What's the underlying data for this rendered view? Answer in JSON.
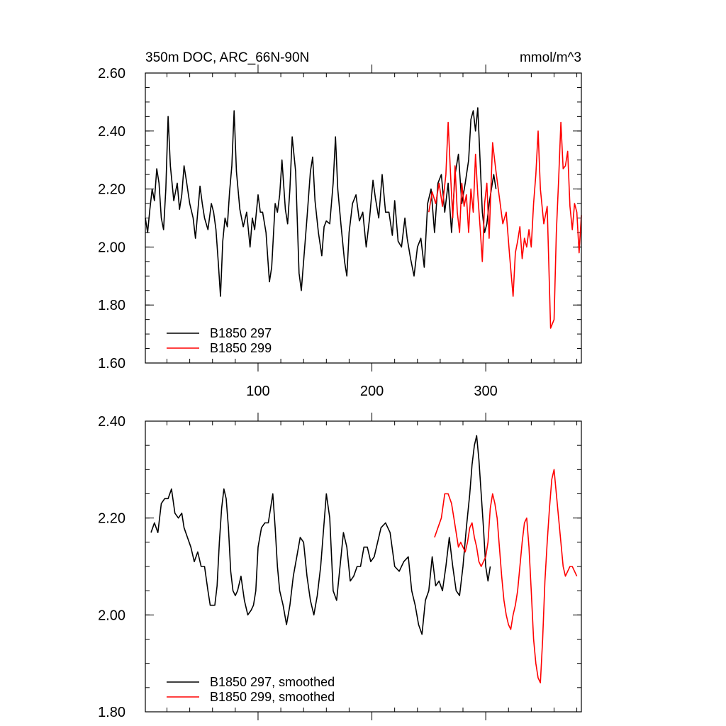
{
  "chart_data": [
    {
      "type": "line",
      "title_left": "350m DOC, ARC_66N-90N",
      "title_right": "mmol/m^3",
      "xlim": [
        1,
        384
      ],
      "ylim": [
        1.6,
        2.6
      ],
      "yticks": [
        "1.60",
        "1.80",
        "2.00",
        "2.20",
        "2.40",
        "2.60"
      ],
      "xticks": [
        "100",
        "200",
        "300"
      ],
      "legend": [
        "B1850 297",
        "B1850 299"
      ],
      "legend_position": "bottom-left",
      "series": [
        {
          "name": "B1850 297",
          "color": "#000000",
          "x": [
            1,
            3,
            5,
            7,
            9,
            11,
            13,
            15,
            17,
            19,
            21,
            23,
            26,
            29,
            31,
            33,
            35,
            37,
            40,
            43,
            45,
            47,
            49,
            51,
            53,
            56,
            59,
            61,
            63,
            65,
            67,
            69,
            71,
            73,
            75,
            77,
            79,
            81,
            84,
            87,
            90,
            93,
            95,
            97,
            100,
            102,
            104,
            107,
            110,
            112,
            115,
            117,
            119,
            121,
            124,
            126,
            128,
            130,
            133,
            136,
            138,
            140,
            143,
            146,
            148,
            150,
            153,
            156,
            158,
            160,
            163,
            166,
            168,
            170,
            173,
            176,
            178,
            180,
            183,
            186,
            189,
            192,
            195,
            198,
            201,
            203,
            206,
            209,
            212,
            215,
            218,
            220,
            223,
            226,
            229,
            231,
            234,
            237,
            240,
            243,
            246,
            249,
            252,
            255,
            258,
            261,
            264,
            267,
            270,
            273,
            276,
            279,
            282,
            285,
            287,
            289,
            291,
            293,
            295,
            297,
            299,
            301,
            303,
            305,
            307,
            309
          ],
          "y": [
            2.1,
            2.05,
            2.13,
            2.2,
            2.16,
            2.27,
            2.22,
            2.1,
            2.06,
            2.2,
            2.45,
            2.28,
            2.16,
            2.22,
            2.13,
            2.18,
            2.28,
            2.23,
            2.15,
            2.1,
            2.03,
            2.12,
            2.21,
            2.15,
            2.1,
            2.06,
            2.15,
            2.12,
            2.06,
            1.95,
            1.83,
            2.02,
            2.1,
            2.07,
            2.19,
            2.28,
            2.47,
            2.26,
            2.13,
            2.07,
            2.12,
            2.0,
            2.1,
            2.06,
            2.18,
            2.12,
            2.12,
            2.05,
            1.88,
            1.93,
            2.15,
            2.12,
            2.18,
            2.3,
            2.13,
            2.08,
            2.2,
            2.38,
            2.26,
            1.91,
            1.85,
            1.95,
            2.1,
            2.26,
            2.31,
            2.16,
            2.05,
            1.97,
            2.07,
            2.09,
            2.08,
            2.22,
            2.38,
            2.2,
            2.07,
            1.95,
            1.9,
            2.05,
            2.15,
            2.18,
            2.09,
            2.12,
            2.0,
            2.1,
            2.23,
            2.17,
            2.1,
            2.25,
            2.12,
            2.12,
            2.04,
            2.16,
            2.02,
            2.0,
            2.1,
            2.03,
            1.96,
            1.9,
            2.0,
            2.03,
            1.93,
            2.15,
            2.2,
            2.05,
            2.22,
            2.25,
            2.12,
            2.22,
            2.05,
            2.25,
            2.32,
            2.15,
            2.22,
            2.3,
            2.44,
            2.47,
            2.4,
            2.48,
            2.3,
            2.12,
            2.05,
            2.08,
            2.15,
            2.2,
            2.25,
            2.2
          ]
        },
        {
          "name": "B1850 299",
          "color": "#ff0000",
          "x": [
            250,
            253,
            256,
            259,
            262,
            265,
            267,
            269,
            271,
            273,
            275,
            277,
            279,
            281,
            283,
            285,
            287,
            289,
            291,
            293,
            295,
            297,
            299,
            301,
            303,
            306,
            309,
            312,
            315,
            318,
            321,
            324,
            326,
            328,
            330,
            332,
            334,
            336,
            338,
            340,
            342,
            344,
            346,
            348,
            351,
            354,
            357,
            360,
            362,
            364,
            366,
            368,
            370,
            372,
            374,
            376,
            378,
            380,
            382,
            384
          ],
          "y": [
            2.12,
            2.19,
            2.15,
            2.22,
            2.14,
            2.25,
            2.43,
            2.26,
            2.1,
            2.28,
            2.12,
            2.05,
            2.22,
            2.14,
            2.18,
            2.05,
            2.2,
            2.12,
            2.32,
            2.18,
            2.07,
            1.95,
            2.15,
            2.22,
            2.03,
            2.36,
            2.26,
            2.17,
            2.08,
            2.12,
            1.97,
            1.83,
            1.98,
            2.02,
            2.07,
            1.96,
            2.03,
            2.0,
            2.06,
            2.0,
            2.15,
            2.25,
            2.4,
            2.2,
            2.08,
            2.14,
            1.72,
            1.75,
            2.05,
            2.23,
            2.43,
            2.27,
            2.28,
            2.33,
            2.14,
            2.06,
            2.15,
            2.12,
            1.98,
            2.11
          ]
        }
      ]
    },
    {
      "type": "line",
      "xlim": [
        1,
        384
      ],
      "ylim": [
        1.8,
        2.4
      ],
      "yticks": [
        "1.80",
        "2.00",
        "2.20",
        "2.40"
      ],
      "legend": [
        "B1850 297, smoothed",
        "B1850 299, smoothed"
      ],
      "legend_position": "bottom-left",
      "series": [
        {
          "name": "B1850 297, smoothed",
          "color": "#000000",
          "x": [
            6,
            9,
            12,
            15,
            18,
            21,
            24,
            27,
            30,
            33,
            35,
            38,
            41,
            44,
            47,
            50,
            53,
            56,
            58,
            60,
            62,
            64,
            66,
            68,
            70,
            72,
            74,
            76,
            78,
            80,
            82,
            85,
            88,
            91,
            94,
            96,
            98,
            100,
            103,
            106,
            109,
            111,
            113,
            115,
            117,
            119,
            122,
            125,
            128,
            131,
            134,
            137,
            140,
            143,
            146,
            149,
            152,
            155,
            157,
            160,
            163,
            166,
            169,
            172,
            175,
            178,
            181,
            184,
            187,
            190,
            193,
            196,
            199,
            202,
            205,
            208,
            212,
            216,
            220,
            224,
            228,
            232,
            235,
            238,
            241,
            244,
            247,
            250,
            253,
            256,
            259,
            262,
            265,
            268,
            271,
            274,
            277,
            280,
            283,
            286,
            288,
            290,
            292,
            294,
            296,
            298,
            300,
            302,
            304
          ],
          "y": [
            2.17,
            2.19,
            2.17,
            2.23,
            2.24,
            2.24,
            2.26,
            2.21,
            2.2,
            2.21,
            2.18,
            2.16,
            2.14,
            2.11,
            2.13,
            2.1,
            2.1,
            2.05,
            2.02,
            2.02,
            2.02,
            2.06,
            2.15,
            2.22,
            2.26,
            2.24,
            2.18,
            2.09,
            2.05,
            2.04,
            2.05,
            2.08,
            2.03,
            2.0,
            2.01,
            2.02,
            2.05,
            2.14,
            2.18,
            2.19,
            2.19,
            2.22,
            2.25,
            2.18,
            2.1,
            2.05,
            2.02,
            1.98,
            2.02,
            2.08,
            2.12,
            2.16,
            2.15,
            2.08,
            2.03,
            2.0,
            2.04,
            2.1,
            2.16,
            2.25,
            2.2,
            2.05,
            2.03,
            2.1,
            2.17,
            2.14,
            2.07,
            2.08,
            2.1,
            2.1,
            2.14,
            2.14,
            2.11,
            2.12,
            2.15,
            2.18,
            2.19,
            2.17,
            2.1,
            2.09,
            2.11,
            2.12,
            2.05,
            2.02,
            1.98,
            1.96,
            2.03,
            2.05,
            2.12,
            2.06,
            2.07,
            2.05,
            2.1,
            2.16,
            2.1,
            2.05,
            2.04,
            2.1,
            2.18,
            2.25,
            2.31,
            2.35,
            2.37,
            2.32,
            2.25,
            2.18,
            2.1,
            2.07,
            2.1
          ]
        },
        {
          "name": "B1850 299, smoothed",
          "color": "#ff0000",
          "x": [
            255,
            258,
            261,
            264,
            267,
            270,
            272,
            274,
            276,
            278,
            280,
            282,
            284,
            286,
            288,
            290,
            292,
            294,
            296,
            298,
            300,
            302,
            304,
            306,
            308,
            310,
            312,
            314,
            316,
            318,
            320,
            322,
            324,
            326,
            328,
            330,
            332,
            334,
            336,
            338,
            340,
            342,
            344,
            346,
            348,
            350,
            352,
            354,
            356,
            358,
            360,
            362,
            364,
            366,
            368,
            370,
            372,
            374,
            376,
            378,
            380
          ],
          "y": [
            2.16,
            2.18,
            2.2,
            2.25,
            2.25,
            2.23,
            2.2,
            2.17,
            2.14,
            2.15,
            2.14,
            2.13,
            2.15,
            2.18,
            2.19,
            2.16,
            2.14,
            2.11,
            2.1,
            2.11,
            2.12,
            2.15,
            2.22,
            2.25,
            2.23,
            2.2,
            2.14,
            2.08,
            2.03,
            2.0,
            1.98,
            1.97,
            2.0,
            2.02,
            2.05,
            2.1,
            2.15,
            2.19,
            2.2,
            2.14,
            2.05,
            1.95,
            1.9,
            1.87,
            1.86,
            1.95,
            2.07,
            2.15,
            2.22,
            2.28,
            2.3,
            2.25,
            2.2,
            2.15,
            2.1,
            2.08,
            2.09,
            2.1,
            2.1,
            2.09,
            2.08
          ]
        }
      ]
    }
  ]
}
